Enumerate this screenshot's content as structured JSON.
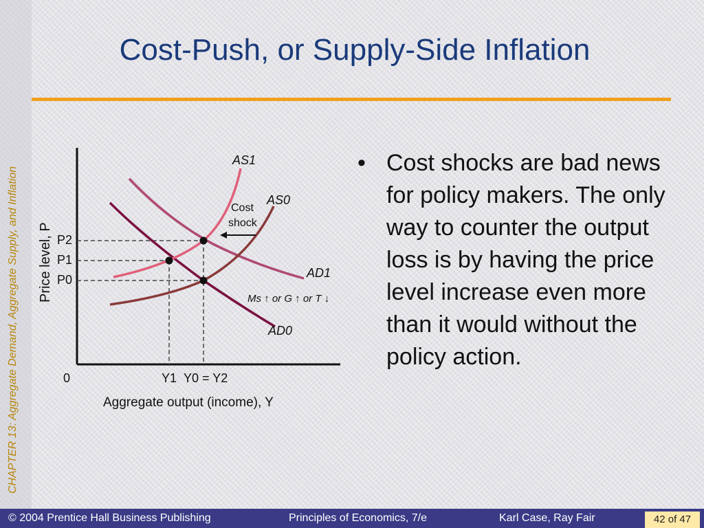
{
  "side_label": "CHAPTER 13: Aggregate Demand, Aggregate Supply, and Inflation",
  "title": "Cost-Push, or Supply-Side Inflation",
  "diagram": {
    "y_axis_label": "Price level, P",
    "x_axis_label": "Aggregate output (income), Y",
    "origin": "0",
    "price_labels": [
      "P2",
      "P1",
      "P0"
    ],
    "output_labels": {
      "y1": "Y1",
      "y0_eq_y2": "Y0 = Y2"
    },
    "curves": {
      "as1": "AS1",
      "as0": "AS0",
      "ad1": "AD1",
      "ad0": "AD0"
    },
    "cost_shock": [
      "Cost",
      "shock"
    ],
    "policy": "Ms ↑ or G ↑ or T ↓",
    "colors": {
      "as": "#e0607a",
      "as0": "#8a3a3a",
      "ad0": "#7a1040",
      "ad1": "#b04a70"
    }
  },
  "bullet": "Cost shocks are bad news for policy makers. The only way to counter the output loss is by having the price level increase even more than it would without the policy action.",
  "footer": {
    "publisher": "© 2004 Prentice Hall Business Publishing",
    "book": "Principles of Economics, 7/e",
    "authors": "Karl Case, Ray Fair",
    "page": "42 of 47"
  }
}
